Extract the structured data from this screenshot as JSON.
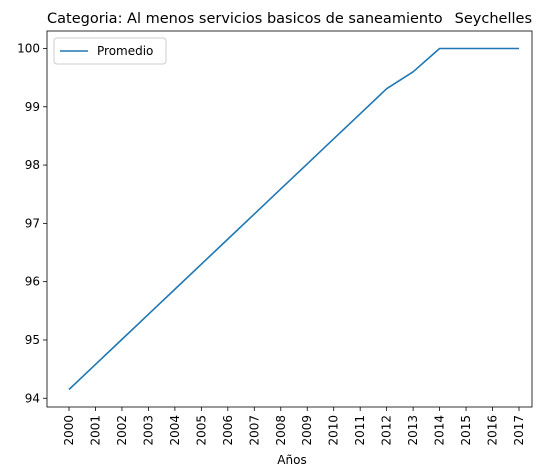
{
  "chart_data": {
    "type": "line",
    "title_left": "Categoria: Al menos servicios basicos de saneamiento",
    "title_right": "Seychelles",
    "xlabel": "Años",
    "ylabel": "",
    "x": [
      "2000",
      "2001",
      "2002",
      "2003",
      "2004",
      "2005",
      "2006",
      "2007",
      "2008",
      "2009",
      "2010",
      "2011",
      "2012",
      "2013",
      "2014",
      "2015",
      "2016",
      "2017"
    ],
    "yticks": [
      94,
      95,
      96,
      97,
      98,
      99,
      100
    ],
    "ylim": [
      93.85,
      100.3
    ],
    "grid": false,
    "legend_position": "top-left",
    "series": [
      {
        "name": "Promedio",
        "color": "#1f77b4",
        "values": [
          94.15,
          94.58,
          95.01,
          95.44,
          95.87,
          96.3,
          96.73,
          97.16,
          97.59,
          98.02,
          98.45,
          98.88,
          99.31,
          99.6,
          100.0,
          100.0,
          100.0,
          100.0
        ]
      }
    ]
  }
}
